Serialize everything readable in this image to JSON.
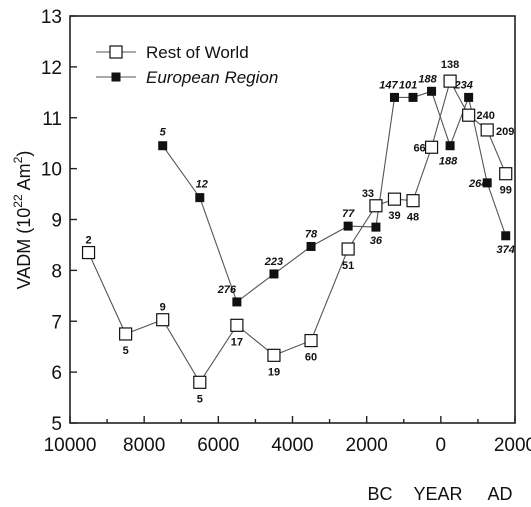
{
  "chart_data": {
    "type": "line",
    "ylabel": "VADM (10",
    "ylabel_exp1": "22",
    "ylabel_unit": " Am",
    "ylabel_exp2": "2",
    "ylabel_close": ")",
    "xlim": [
      -10000,
      2000
    ],
    "ylim": [
      5,
      13
    ],
    "x_axis_reversed": true,
    "x_ticks": [
      -10000,
      -8000,
      -6000,
      -4000,
      -2000,
      0,
      2000
    ],
    "x_tick_labels": [
      "10000",
      "8000",
      "6000",
      "4000",
      "2000",
      "0",
      "2000"
    ],
    "y_ticks": [
      5,
      6,
      7,
      8,
      9,
      10,
      11,
      12,
      13
    ],
    "y_tick_labels": [
      "5",
      "6",
      "7",
      "8",
      "9",
      "10",
      "11",
      "12",
      "13"
    ],
    "era_labels": [
      "BC",
      "YEAR",
      "AD"
    ],
    "grid": false,
    "legend_position": "top-left",
    "series": [
      {
        "name": "Rest of World",
        "marker": "open-square",
        "points": [
          {
            "x": -9500,
            "y": 8.35,
            "label": "2"
          },
          {
            "x": -8500,
            "y": 6.75,
            "label": "5"
          },
          {
            "x": -7500,
            "y": 7.03,
            "label": "9"
          },
          {
            "x": -6500,
            "y": 5.8,
            "label": "5"
          },
          {
            "x": -5500,
            "y": 6.92,
            "label": "17"
          },
          {
            "x": -4500,
            "y": 6.33,
            "label": "19"
          },
          {
            "x": -3500,
            "y": 6.62,
            "label": "60"
          },
          {
            "x": -2500,
            "y": 8.42,
            "label": "51"
          },
          {
            "x": -1750,
            "y": 9.27,
            "label": "33"
          },
          {
            "x": -1250,
            "y": 9.4,
            "label": "39"
          },
          {
            "x": -750,
            "y": 9.37,
            "label": "48"
          },
          {
            "x": -250,
            "y": 10.42,
            "label": "66"
          },
          {
            "x": 250,
            "y": 11.72,
            "label": "138"
          },
          {
            "x": 750,
            "y": 11.05,
            "label": "240"
          },
          {
            "x": 1250,
            "y": 10.76,
            "label": "209"
          },
          {
            "x": 1750,
            "y": 9.9,
            "label": "99"
          }
        ]
      },
      {
        "name": "European Region",
        "marker": "filled-square",
        "points": [
          {
            "x": -7500,
            "y": 10.45,
            "label": "5"
          },
          {
            "x": -6500,
            "y": 9.43,
            "label": "12"
          },
          {
            "x": -5500,
            "y": 7.38,
            "label": "276"
          },
          {
            "x": -4500,
            "y": 7.93,
            "label": "223"
          },
          {
            "x": -3500,
            "y": 8.47,
            "label": "78"
          },
          {
            "x": -2500,
            "y": 8.87,
            "label": "77"
          },
          {
            "x": -1750,
            "y": 8.85,
            "label": "36"
          },
          {
            "x": -1250,
            "y": 11.4,
            "label": "147"
          },
          {
            "x": -750,
            "y": 11.4,
            "label": "101"
          },
          {
            "x": -250,
            "y": 11.52,
            "label": "188"
          },
          {
            "x": 250,
            "y": 10.45,
            "label": "188"
          },
          {
            "x": 750,
            "y": 11.4,
            "label": "234"
          },
          {
            "x": 1250,
            "y": 9.72,
            "label": "264"
          },
          {
            "x": 1750,
            "y": 8.68,
            "label": "374"
          }
        ]
      }
    ],
    "colors": {
      "line": "#555555",
      "marker_fill_open": "#ffffff",
      "marker_fill_filled": "#111111",
      "marker_stroke": "#111111"
    }
  }
}
